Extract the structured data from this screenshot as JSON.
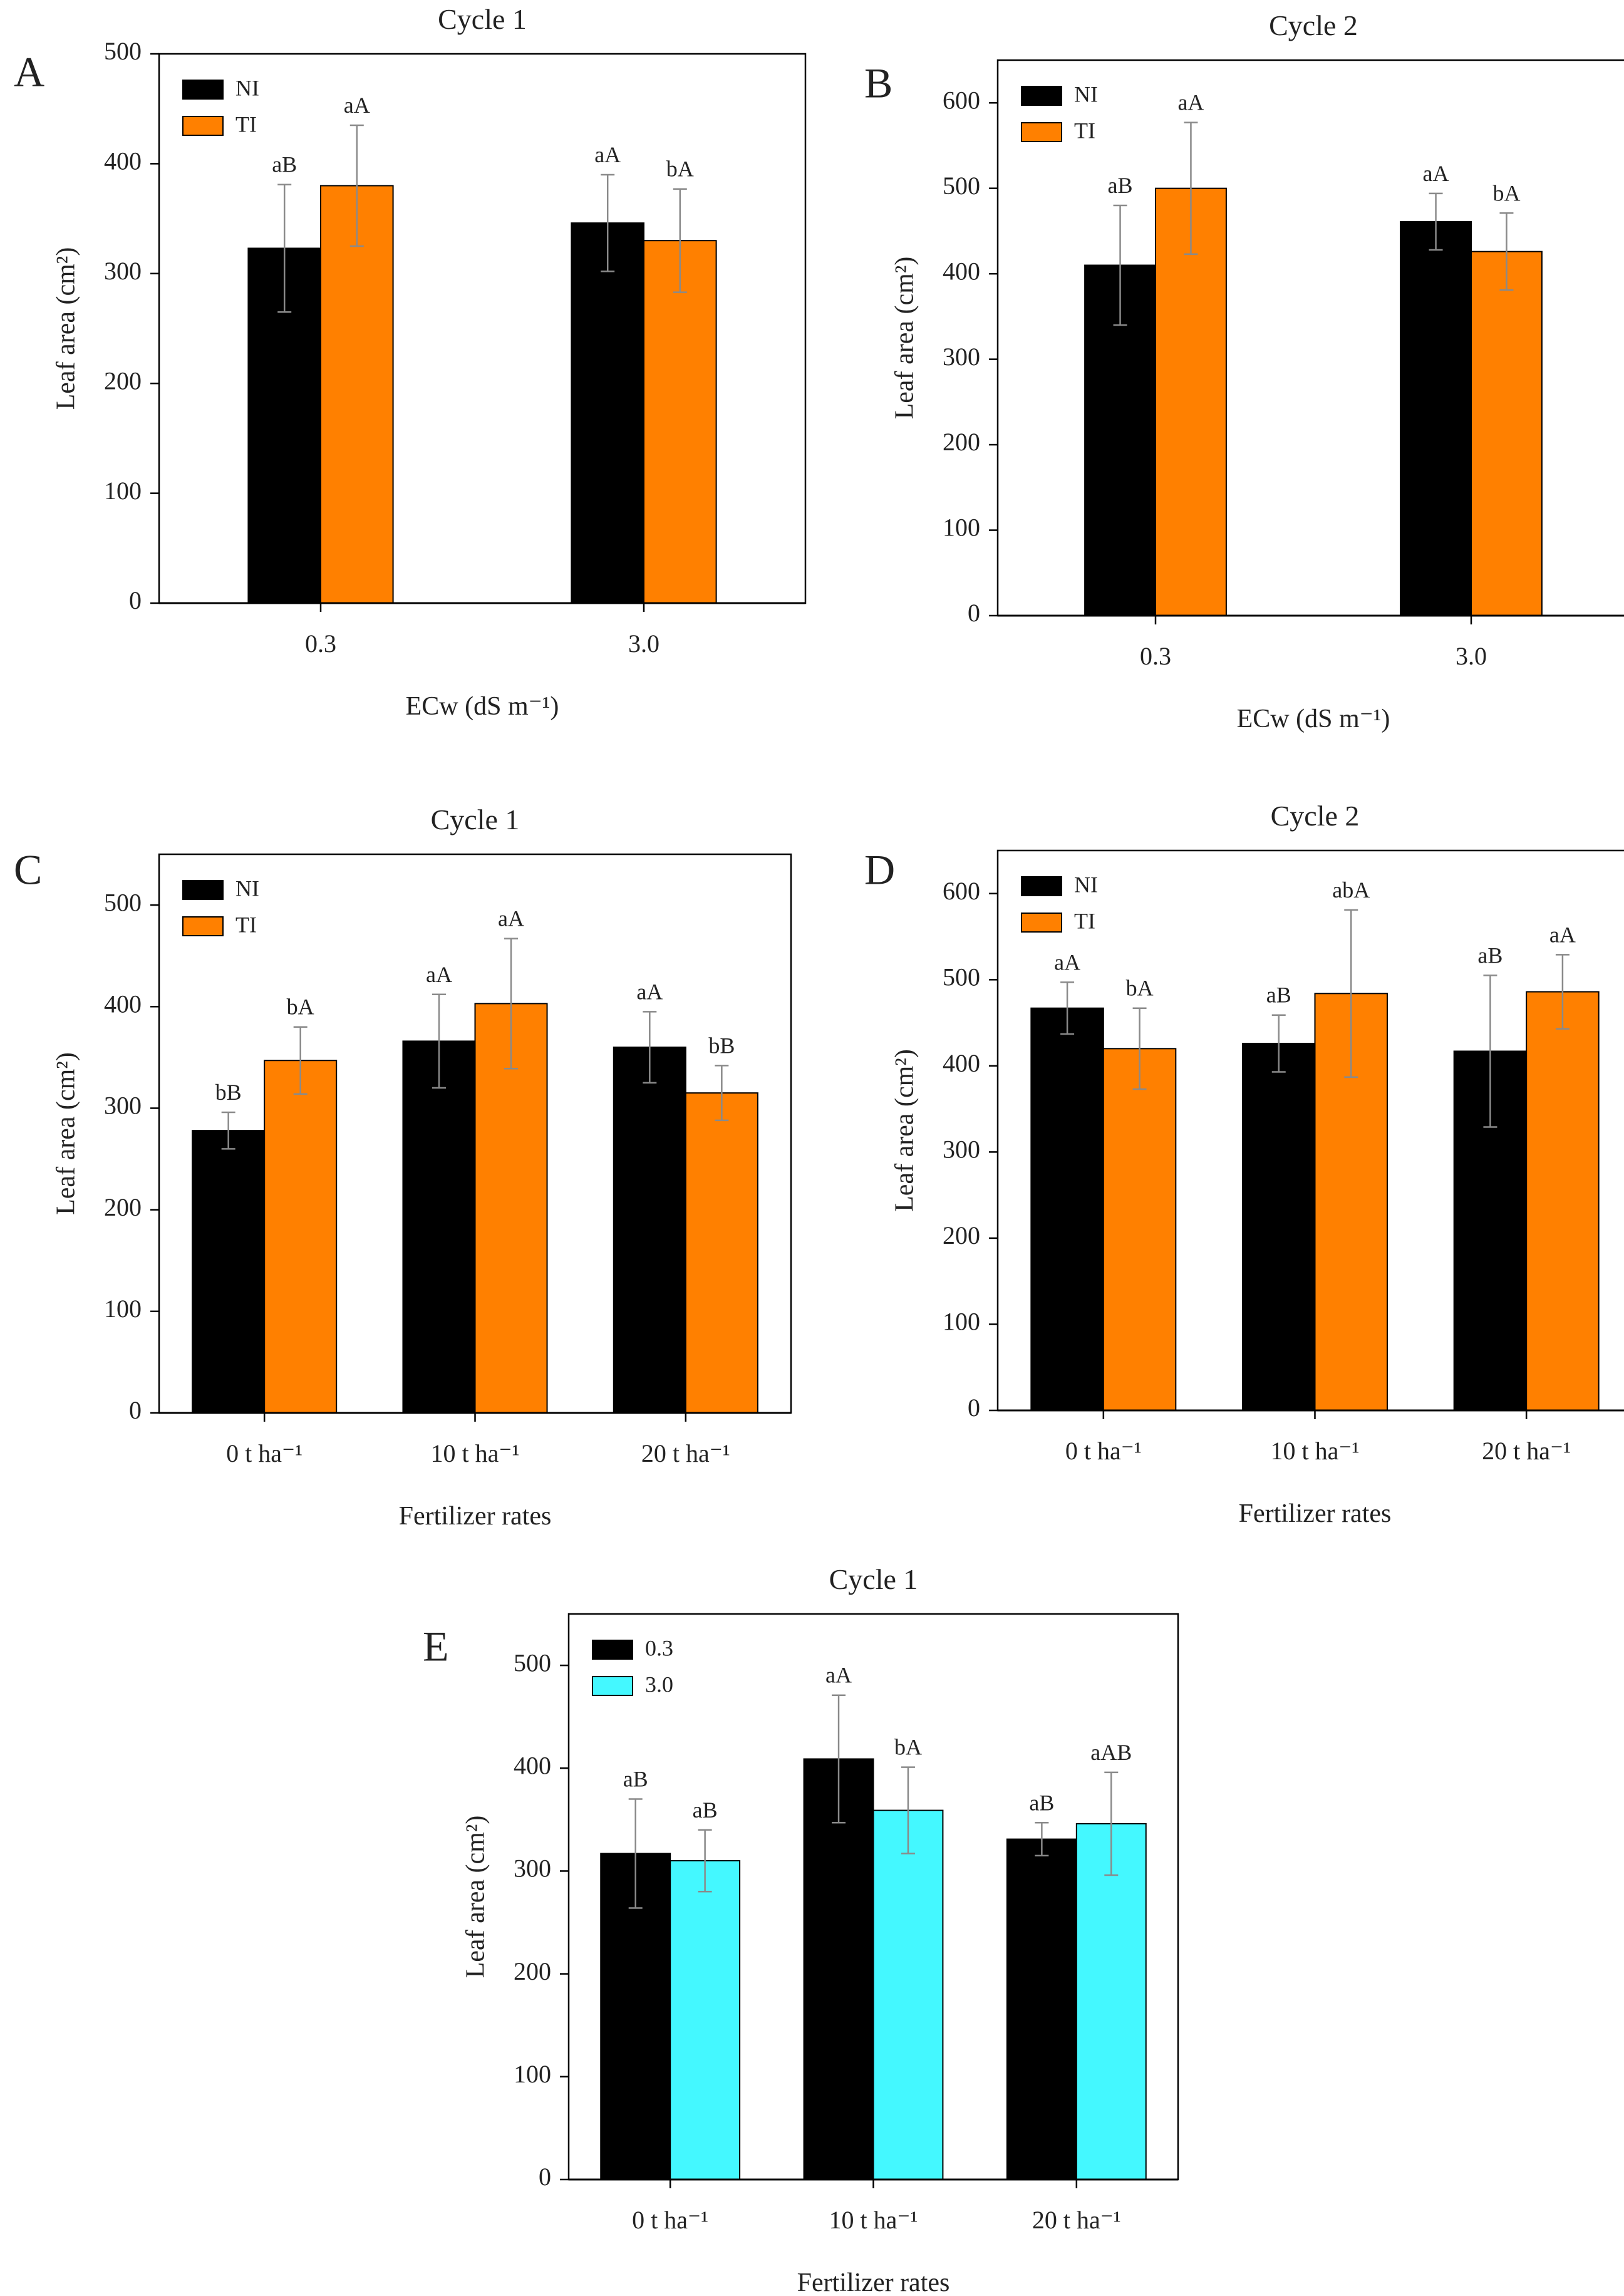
{
  "figure": {
    "colors": {
      "NI": "#000000",
      "TI": "#ff8000",
      "ec03": "#000000",
      "ec30": "#44f8ff",
      "error_bar": "#8a8a8a",
      "axis": "#000000"
    }
  },
  "chart_data": [
    {
      "panel": "A",
      "type": "bar",
      "title": "Cycle 1",
      "xlabel": "ECw (dS m⁻¹)",
      "ylabel": "Leaf area (cm²)",
      "ylim": [
        0,
        500
      ],
      "yticks": [
        0,
        100,
        200,
        300,
        400,
        500
      ],
      "xlim": [
        0,
        4
      ],
      "category_positions": [
        1,
        3
      ],
      "grid": false,
      "legend_position": "top-left",
      "categories": [
        "0.3",
        "3.0"
      ],
      "series": [
        {
          "name": "NI",
          "color": "#000000",
          "values": [
            323,
            346
          ],
          "errors": [
            58,
            44
          ],
          "labels": [
            "aB",
            "aA"
          ]
        },
        {
          "name": "TI",
          "color": "#ff8000",
          "values": [
            380,
            330
          ],
          "errors": [
            55,
            47
          ],
          "labels": [
            "aA",
            "bA"
          ]
        }
      ]
    },
    {
      "panel": "B",
      "type": "bar",
      "title": "Cycle 2",
      "xlabel": "ECw (dS m⁻¹)",
      "ylabel": "Leaf area (cm²)",
      "ylim": [
        0,
        650
      ],
      "yticks": [
        0,
        100,
        200,
        300,
        400,
        500,
        600
      ],
      "xlim": [
        0,
        4
      ],
      "category_positions": [
        1,
        3
      ],
      "grid": false,
      "legend_position": "top-left",
      "categories": [
        "0.3",
        "3.0"
      ],
      "series": [
        {
          "name": "NI",
          "color": "#000000",
          "values": [
            410,
            461
          ],
          "errors": [
            70,
            33
          ],
          "labels": [
            "aB",
            "aA"
          ]
        },
        {
          "name": "TI",
          "color": "#ff8000",
          "values": [
            500,
            426
          ],
          "errors": [
            77,
            45
          ],
          "labels": [
            "aA",
            "bA"
          ]
        }
      ]
    },
    {
      "panel": "C",
      "type": "bar",
      "title": "Cycle 1",
      "xlabel": "Fertilizer rates",
      "ylabel": "Leaf area (cm²)",
      "ylim": [
        0,
        550
      ],
      "yticks": [
        0,
        100,
        200,
        300,
        400,
        500
      ],
      "grid": false,
      "legend_position": "top-left",
      "categories": [
        "0 t ha⁻¹",
        "10 t ha⁻¹",
        "20 t ha⁻¹"
      ],
      "series": [
        {
          "name": "NI",
          "color": "#000000",
          "values": [
            278,
            366,
            360
          ],
          "errors": [
            18,
            46,
            35
          ],
          "labels": [
            "bB",
            "aA",
            "aA"
          ]
        },
        {
          "name": "TI",
          "color": "#ff8000",
          "values": [
            347,
            403,
            315
          ],
          "errors": [
            33,
            64,
            27
          ],
          "labels": [
            "bA",
            "aA",
            "bB"
          ]
        }
      ]
    },
    {
      "panel": "D",
      "type": "bar",
      "title": "Cycle 2",
      "xlabel": "Fertilizer rates",
      "ylabel": "Leaf area (cm²)",
      "ylim": [
        0,
        650
      ],
      "yticks": [
        0,
        100,
        200,
        300,
        400,
        500,
        600
      ],
      "grid": false,
      "legend_position": "top-left",
      "categories": [
        "0 t ha⁻¹",
        "10 t ha⁻¹",
        "20 t ha⁻¹"
      ],
      "series": [
        {
          "name": "NI",
          "color": "#000000",
          "values": [
            467,
            426,
            417
          ],
          "errors": [
            30,
            33,
            88
          ],
          "labels": [
            "aA",
            "aB",
            "aB"
          ]
        },
        {
          "name": "TI",
          "color": "#ff8000",
          "values": [
            420,
            484,
            486
          ],
          "errors": [
            47,
            97,
            43
          ],
          "labels": [
            "bA",
            "abA",
            "aA"
          ]
        }
      ]
    },
    {
      "panel": "E",
      "type": "bar",
      "title": "Cycle 1",
      "xlabel": "Fertilizer rates",
      "ylabel": "Leaf area (cm²)",
      "ylim": [
        0,
        550
      ],
      "yticks": [
        0,
        100,
        200,
        300,
        400,
        500
      ],
      "grid": false,
      "legend_position": "top-left",
      "categories": [
        "0 t ha⁻¹",
        "10 t ha⁻¹",
        "20 t ha⁻¹"
      ],
      "series": [
        {
          "name": "0.3",
          "color": "#000000",
          "values": [
            317,
            409,
            331
          ],
          "errors": [
            53,
            62,
            16
          ],
          "labels": [
            "aB",
            "aA",
            "aB"
          ]
        },
        {
          "name": "3.0",
          "color": "#44f8ff",
          "values": [
            310,
            359,
            346
          ],
          "errors": [
            30,
            42,
            50
          ],
          "labels": [
            "aB",
            "bA",
            "aAB"
          ]
        }
      ]
    }
  ]
}
